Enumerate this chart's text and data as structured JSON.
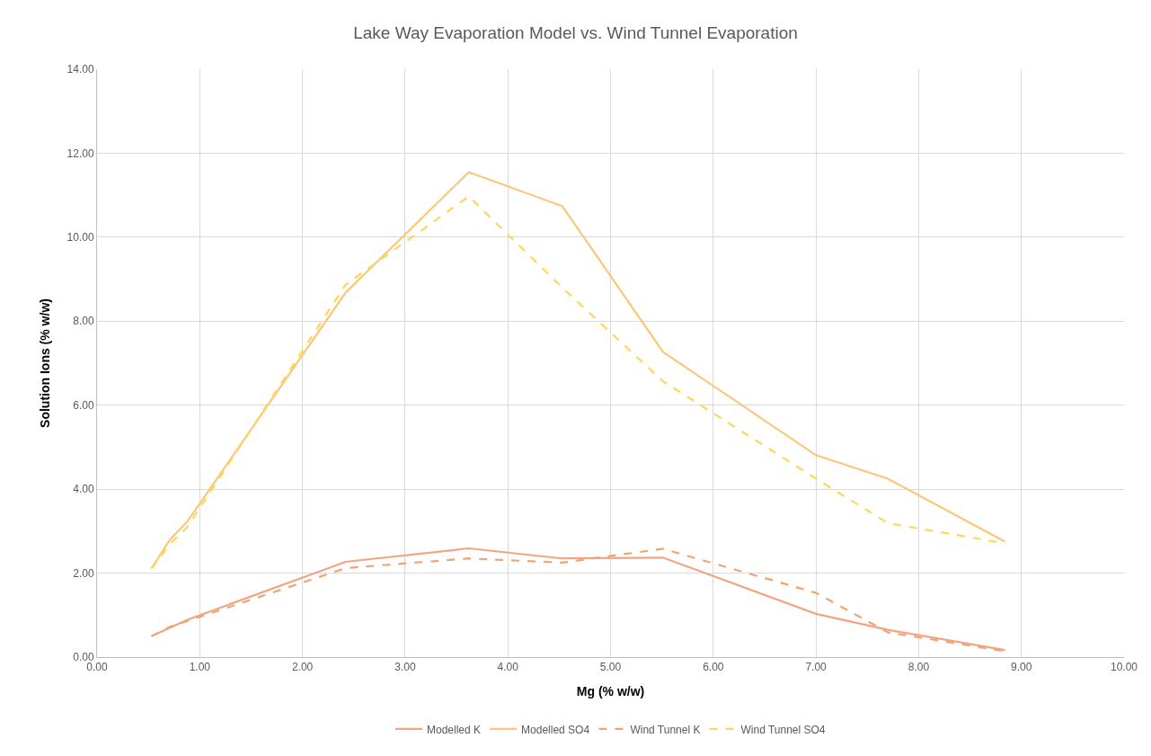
{
  "chart_data": {
    "type": "line",
    "title": "Lake Way Evaporation Model vs. Wind Tunnel Evaporation",
    "xlabel": "Mg (% w/w)",
    "ylabel": "Solution Ions (% w/w)",
    "x": [
      0.53,
      0.71,
      0.88,
      2.42,
      3.62,
      4.53,
      5.51,
      7.0,
      7.7,
      8.84
    ],
    "series": [
      {
        "name": "Modelled K",
        "color": "#f2a584",
        "line_style": "solid",
        "values": [
          0.5,
          0.7,
          0.89,
          2.27,
          2.59,
          2.35,
          2.37,
          1.03,
          0.65,
          0.17
        ]
      },
      {
        "name": "Modelled SO4",
        "color": "#fcc77a",
        "line_style": "solid",
        "values": [
          2.11,
          2.8,
          3.23,
          8.68,
          11.55,
          10.74,
          7.27,
          4.81,
          4.25,
          2.75
        ]
      },
      {
        "name": "Wind Tunnel K",
        "color": "#f2a470",
        "line_style": "dashed",
        "values": [
          0.5,
          0.72,
          0.86,
          2.12,
          2.35,
          2.25,
          2.58,
          1.53,
          0.59,
          0.14
        ]
      },
      {
        "name": "Wind Tunnel SO4",
        "color": "#ffd659",
        "line_style": "dashed",
        "values": [
          2.11,
          2.7,
          3.1,
          8.87,
          10.97,
          8.8,
          6.57,
          4.25,
          3.19,
          2.71
        ]
      }
    ],
    "xlim": [
      0,
      10
    ],
    "xticks": [
      {
        "value": 0,
        "label": "0.00"
      },
      {
        "value": 1,
        "label": "1.00"
      },
      {
        "value": 2,
        "label": "2.00"
      },
      {
        "value": 3,
        "label": "3.00"
      },
      {
        "value": 4,
        "label": "4.00"
      },
      {
        "value": 5,
        "label": "5.00"
      },
      {
        "value": 6,
        "label": "6.00"
      },
      {
        "value": 7,
        "label": "7.00"
      },
      {
        "value": 8,
        "label": "8.00"
      },
      {
        "value": 9,
        "label": "9.00"
      },
      {
        "value": 10,
        "label": "10.00"
      }
    ],
    "ylim": [
      0,
      14
    ],
    "yticks": [
      {
        "value": 0,
        "label": "0.00"
      },
      {
        "value": 2,
        "label": "2.00"
      },
      {
        "value": 4,
        "label": "4.00"
      },
      {
        "value": 6,
        "label": "6.00"
      },
      {
        "value": 8,
        "label": "8.00"
      },
      {
        "value": 10,
        "label": "10.00"
      },
      {
        "value": 12,
        "label": "12.00"
      },
      {
        "value": 14,
        "label": "14.00"
      }
    ],
    "grid": true,
    "legend": "bottom",
    "marker": "none"
  }
}
